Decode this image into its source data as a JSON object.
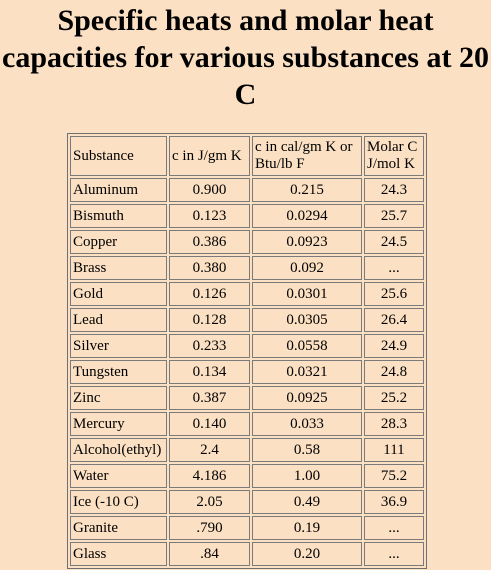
{
  "title": "Specific heats and molar heat capacities for various substances at 20 C",
  "table": {
    "headers": [
      "Substance",
      "c in J/gm K",
      "c in cal/gm K or Btu/lb F",
      "Molar C J/mol K"
    ],
    "rows": [
      [
        "Aluminum",
        "0.900",
        "0.215",
        "24.3"
      ],
      [
        "Bismuth",
        "0.123",
        "0.0294",
        "25.7"
      ],
      [
        "Copper",
        "0.386",
        "0.0923",
        "24.5"
      ],
      [
        "Brass",
        "0.380",
        "0.092",
        "..."
      ],
      [
        "Gold",
        "0.126",
        "0.0301",
        "25.6"
      ],
      [
        "Lead",
        "0.128",
        "0.0305",
        "26.4"
      ],
      [
        "Silver",
        "0.233",
        "0.0558",
        "24.9"
      ],
      [
        "Tungsten",
        "0.134",
        "0.0321",
        "24.8"
      ],
      [
        "Zinc",
        "0.387",
        "0.0925",
        "25.2"
      ],
      [
        "Mercury",
        "0.140",
        "0.033",
        "28.3"
      ],
      [
        "Alcohol(ethyl)",
        "2.4",
        "0.58",
        "111"
      ],
      [
        "Water",
        "4.186",
        "1.00",
        "75.2"
      ],
      [
        "Ice (-10 C)",
        "2.05",
        "0.49",
        "36.9"
      ],
      [
        "Granite",
        ".790",
        "0.19",
        "..."
      ],
      [
        "Glass",
        ".84",
        "0.20",
        "..."
      ]
    ]
  }
}
